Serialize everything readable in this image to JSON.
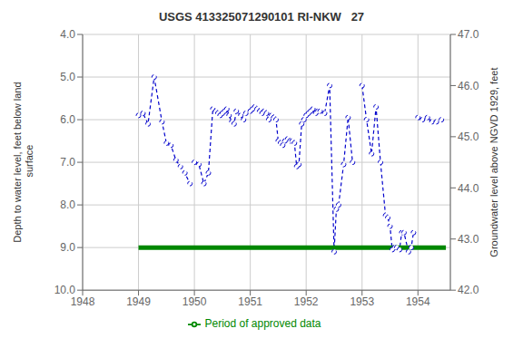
{
  "chart_data": {
    "type": "line",
    "title": "USGS 413325071290101 RI-NKW   27",
    "ylabel": "Depth to water level, feet below land\n surface",
    "y2label": "Groundwater level above NGVD 1929, feet",
    "xlim": [
      1948.0,
      1954.58
    ],
    "xticks": [
      1948,
      1949,
      1950,
      1951,
      1952,
      1953,
      1954
    ],
    "ylim": [
      10.0,
      4.0
    ],
    "yticks": [
      {
        "value": 4.0,
        "label": "4.0"
      },
      {
        "value": 5.0,
        "label": "5.0"
      },
      {
        "value": 6.0,
        "label": "6.0"
      },
      {
        "value": 7.0,
        "label": "7.0"
      },
      {
        "value": 8.0,
        "label": "8.0"
      },
      {
        "value": 9.0,
        "label": "9.0"
      },
      {
        "value": 10.0,
        "label": "10.0"
      }
    ],
    "y2lim": [
      42.0,
      47.0
    ],
    "y2ticks": [
      {
        "value": 42.0,
        "label": "42.0"
      },
      {
        "value": 43.0,
        "label": "43.0"
      },
      {
        "value": 44.0,
        "label": "44.0"
      },
      {
        "value": 45.0,
        "label": "45.0"
      },
      {
        "value": 46.0,
        "label": "46.0"
      },
      {
        "value": 47.0,
        "label": "47.0"
      }
    ],
    "grid": true,
    "legend": "bottom",
    "series": [
      {
        "color": "#0000CC",
        "line_style": "dashed",
        "marker": "circle",
        "x": [
          1949.0,
          1949.08,
          1949.17,
          1949.28,
          1949.42,
          1949.5,
          1949.58,
          1949.67,
          1949.75,
          1949.83,
          1949.92
        ],
        "values": [
          5.9,
          5.85,
          6.1,
          5.0,
          6.05,
          6.55,
          6.6,
          6.95,
          7.1,
          7.25,
          7.5
        ]
      },
      {
        "color": "#0000CC",
        "line_style": "dashed",
        "marker": "circle",
        "x": [
          1950.0,
          1950.08,
          1950.17,
          1950.25,
          1950.33,
          1950.38,
          1950.42,
          1950.46,
          1950.5,
          1950.54,
          1950.58,
          1950.62,
          1950.67,
          1950.71,
          1950.75,
          1950.83,
          1950.88,
          1950.92
        ],
        "values": [
          7.0,
          7.05,
          7.5,
          7.25,
          5.75,
          5.8,
          5.85,
          5.9,
          5.85,
          5.8,
          5.75,
          5.9,
          6.05,
          6.1,
          5.8,
          5.9,
          6.0,
          5.85
        ]
      },
      {
        "color": "#0000CC",
        "line_style": "dashed",
        "marker": "circle",
        "x": [
          1951.0,
          1951.04,
          1951.08,
          1951.12,
          1951.17,
          1951.21,
          1951.25,
          1951.29,
          1951.33,
          1951.38,
          1951.42,
          1951.46,
          1951.5,
          1951.54,
          1951.58,
          1951.62,
          1951.67,
          1951.71,
          1951.75,
          1951.79,
          1951.83,
          1951.87,
          1951.92,
          1951.96
        ],
        "values": [
          5.8,
          5.75,
          5.7,
          5.75,
          5.8,
          5.85,
          5.8,
          5.85,
          6.0,
          5.9,
          5.95,
          6.0,
          6.5,
          6.55,
          6.6,
          6.5,
          6.45,
          6.5,
          6.5,
          6.55,
          7.1,
          7.05,
          6.1,
          6.0
        ]
      },
      {
        "color": "#0000CC",
        "line_style": "dashed",
        "marker": "circle",
        "x": [
          1952.0,
          1952.04,
          1952.08,
          1952.12,
          1952.17,
          1952.21,
          1952.25,
          1952.33,
          1952.42,
          1952.5,
          1952.54,
          1952.58,
          1952.67,
          1952.75,
          1952.83
        ],
        "values": [
          5.9,
          5.85,
          5.8,
          5.75,
          5.85,
          5.8,
          5.8,
          5.85,
          5.2,
          9.1,
          8.1,
          8.0,
          7.05,
          5.95,
          7.0
        ]
      },
      {
        "color": "#0000CC",
        "line_style": "dashed",
        "marker": "circle",
        "x": [
          1953.0,
          1953.08,
          1953.17,
          1953.25,
          1953.33,
          1953.42,
          1953.46,
          1953.5,
          1953.54,
          1953.58,
          1953.62,
          1953.67,
          1953.71,
          1953.75,
          1953.83,
          1953.88,
          1953.92
        ],
        "values": [
          5.2,
          6.0,
          6.8,
          5.7,
          7.0,
          8.25,
          8.3,
          8.5,
          9.05,
          9.0,
          9.0,
          9.05,
          8.65,
          8.65,
          9.1,
          9.0,
          8.65
        ]
      },
      {
        "color": "#0000CC",
        "line_style": "dashed",
        "marker": "circle",
        "x": [
          1954.0,
          1954.08,
          1954.17,
          1954.25,
          1954.33,
          1954.42
        ],
        "values": [
          5.95,
          6.0,
          5.95,
          6.05,
          6.05,
          6.0
        ]
      },
      {
        "name": "Period of approved data",
        "color": "#008800",
        "line_style": "solid",
        "marker": "none",
        "x": [
          1949.0,
          1954.5
        ],
        "values": [
          9.0,
          9.0
        ]
      }
    ]
  }
}
